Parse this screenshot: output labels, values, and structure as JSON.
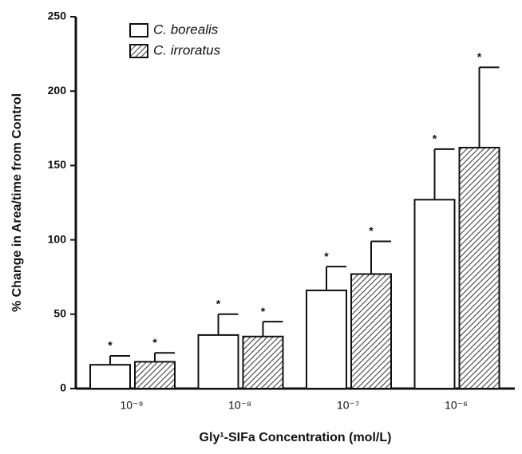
{
  "chart_data": {
    "type": "bar",
    "x_label": "Gly¹-SIFa Concentration (mol/L)",
    "y_label": "% Change in  Area/time from Control",
    "categories": [
      "10⁻⁹",
      "10⁻⁸",
      "10⁻⁷",
      "10⁻⁶"
    ],
    "series": [
      {
        "name": "C. borealis",
        "color": "#ffffff",
        "hatch": false,
        "values": [
          16,
          36,
          66,
          127
        ],
        "errors": [
          6,
          14,
          16,
          34
        ],
        "annotations": [
          "*",
          "*",
          "*",
          "*"
        ]
      },
      {
        "name": "C. irroratus",
        "color": "#ffffff",
        "hatch": true,
        "values": [
          18,
          35,
          77,
          162
        ],
        "errors": [
          6,
          10,
          22,
          54
        ],
        "annotations": [
          "*",
          "*",
          "*",
          "*"
        ]
      }
    ],
    "ylim": [
      0,
      250
    ],
    "yticks": [
      0,
      50,
      100,
      150,
      200,
      250
    ]
  }
}
